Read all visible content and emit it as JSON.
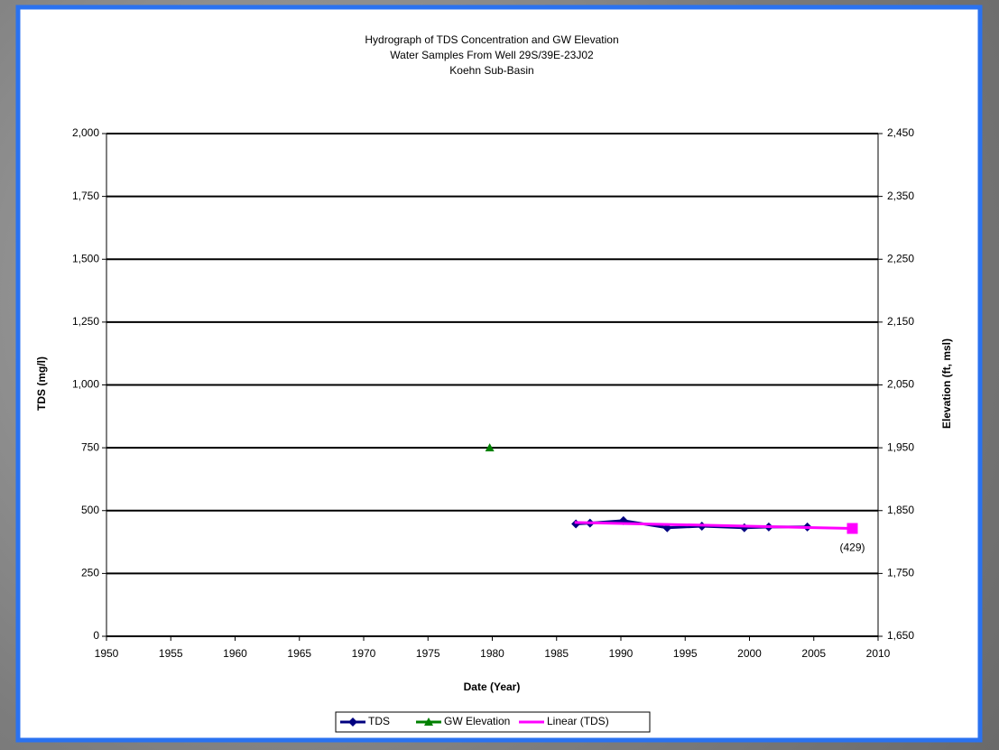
{
  "chart_data": {
    "type": "line",
    "title": [
      "Hydrograph of TDS Concentration and GW Elevation",
      "Water Samples From Well 29S/39E-23J02",
      "Koehn Sub-Basin"
    ],
    "x_label": "Date (Year)",
    "y_label": "TDS (mg/l)",
    "y2_label": "Elevation (ft, msl)",
    "xlim": [
      1950,
      2010
    ],
    "xticks": [
      1950,
      1955,
      1960,
      1965,
      1970,
      1975,
      1980,
      1985,
      1990,
      1995,
      2000,
      2005,
      2010
    ],
    "ylim": [
      0,
      2000
    ],
    "yticks": [
      0,
      250,
      500,
      750,
      {
        "value": 1000,
        "label": "1,000"
      },
      {
        "value": 1250,
        "label": "1,250"
      },
      {
        "value": 1500,
        "label": "1,500"
      },
      {
        "value": 1750,
        "label": "1,750"
      },
      {
        "value": 2000,
        "label": "2,000"
      }
    ],
    "y2lim": [
      1650,
      2450
    ],
    "y2ticks": [
      {
        "value": 1650,
        "label": "1,650"
      },
      {
        "value": 1750,
        "label": "1,750"
      },
      {
        "value": 1850,
        "label": "1,850"
      },
      {
        "value": 1950,
        "label": "1,950"
      },
      {
        "value": 2050,
        "label": "2,050"
      },
      {
        "value": 2150,
        "label": "2,150"
      },
      {
        "value": 2250,
        "label": "2,250"
      },
      {
        "value": 2350,
        "label": "2,350"
      },
      {
        "value": 2450,
        "label": "2,450"
      }
    ],
    "grid": true,
    "legend": "bottom",
    "series": [
      {
        "name": "TDS",
        "color": "#000080",
        "marker": "diamond",
        "x": [
          1986.5,
          1987.6,
          1990.2,
          1993.6,
          1996.3,
          1999.6,
          2001.5,
          2004.5
        ],
        "values": [
          447,
          450,
          460,
          432,
          438,
          432,
          435,
          435
        ]
      },
      {
        "name": "GW Elevation",
        "color": "#008000",
        "marker": "triangle",
        "axis": "y2",
        "x": [
          1979.8
        ],
        "values": [
          1950
        ]
      },
      {
        "name": "Linear (TDS)",
        "color": "#ff00ff",
        "marker": "square",
        "x": [
          1986.4,
          2008
        ],
        "values": [
          453,
          429
        ],
        "value_labels": [
          null,
          "(429)"
        ]
      }
    ]
  }
}
